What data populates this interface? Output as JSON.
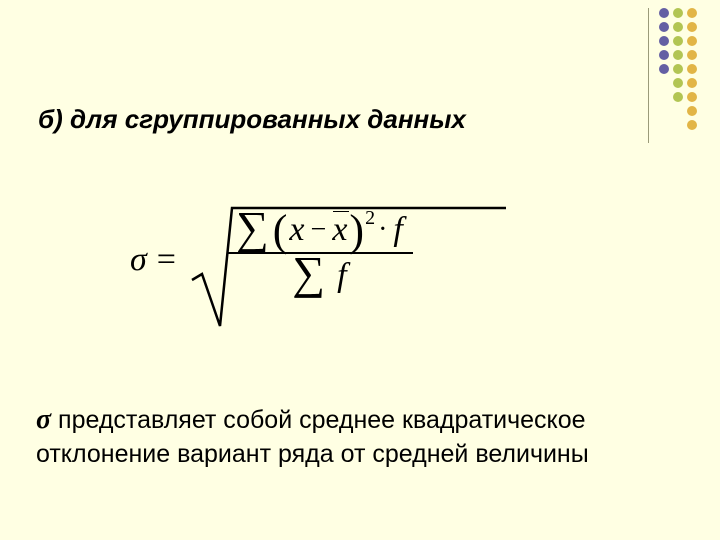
{
  "background_color": "#ffffe3",
  "heading": "б) для сгруппированных данных",
  "footer_sigma": "σ",
  "footer_text": " представляет собой среднее квадратическое отклонение вариант ряда от средней величины",
  "formula": {
    "lhs": "σ",
    "eq": "=",
    "sum": "∑",
    "lparen": "(",
    "x": "x",
    "minus": "−",
    "xbar": "x",
    "rparen": ")",
    "sq": "2",
    "dot": "·",
    "f": "f",
    "radical_stroke": "#000000",
    "radical_stroke_width": 2.5
  },
  "decor": {
    "divider_color": "#9b9b7a",
    "columns": [
      {
        "color": "#645fa3",
        "count": 5
      },
      {
        "color": "#b2c553",
        "count": 7
      },
      {
        "color": "#e2b546",
        "count": 9
      }
    ],
    "dot_size": 10
  }
}
